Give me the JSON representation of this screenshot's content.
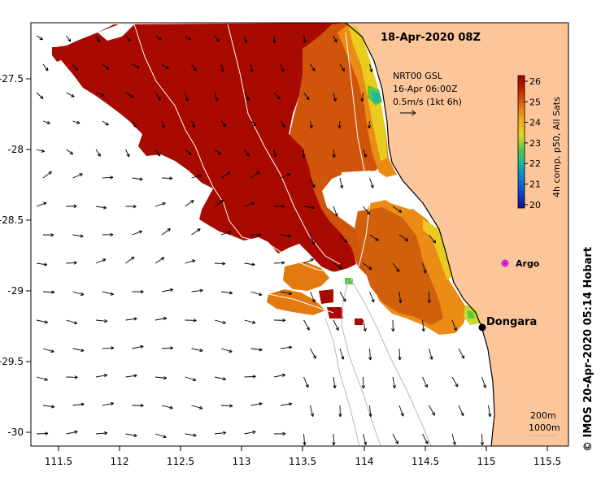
{
  "map": {
    "title": "18-Apr-2020 08Z",
    "x_ticks": [
      "111.5",
      "112",
      "112.5",
      "113",
      "113.5",
      "114",
      "114.5",
      "115",
      "115.5"
    ],
    "y_ticks": [
      "-27.5",
      "-28",
      "-28.5",
      "-29",
      "-29.5",
      "-30"
    ],
    "land_color": "#fcc59a",
    "ocean_color": "#ffffff"
  },
  "current_vectors": {
    "source": "NRT00 GSL",
    "time": "16-Apr 06:00Z",
    "scale": "0.5m/s (1kt 6h)"
  },
  "colorbar": {
    "title": "4h comp, p50, All Sats",
    "ticks": [
      "26",
      "25",
      "24",
      "23",
      "22",
      "21",
      "20"
    ],
    "colors": [
      "#9c0000",
      "#d04000",
      "#ee8c10",
      "#f4b41c",
      "#e6d820",
      "#5cc83c",
      "#1cb8a8",
      "#0c70d8",
      "#10109c"
    ]
  },
  "places": {
    "dongara": "Dongara",
    "argo": "Argo"
  },
  "depth_legend": {
    "shallow": "200m",
    "deep": "1000m"
  },
  "credit": "© IMOS 20-Apr-2020 05:14 Hobart"
}
